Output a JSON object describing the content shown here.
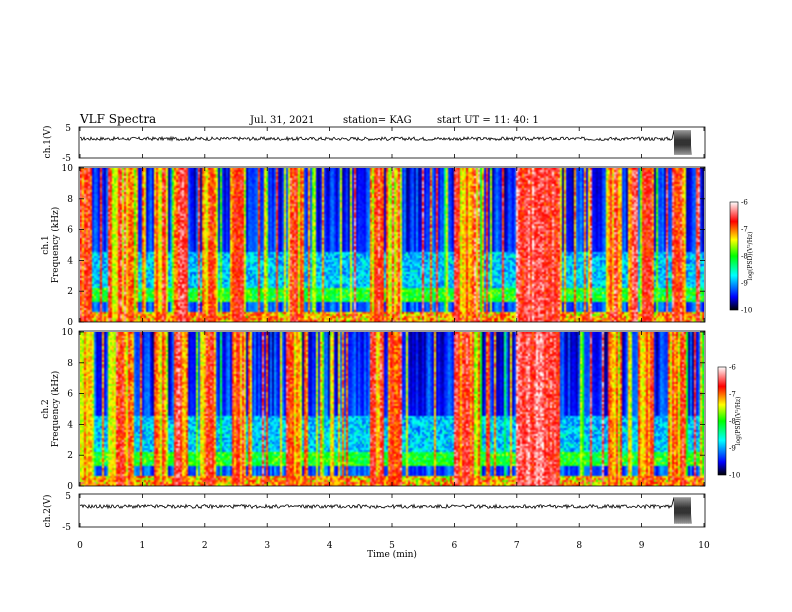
{
  "header": {
    "title": "VLF Spectra",
    "date": "Jul. 31, 2021",
    "station": "station= KAG",
    "start": "start  UT =  11: 40: 1"
  },
  "chart_data": [
    {
      "type": "line",
      "name": "ch.1 waveform",
      "ylabel": "ch.1(V)",
      "ylim": [
        -5,
        5
      ],
      "yticks": [
        "5",
        "-5"
      ],
      "xlim": [
        0,
        10
      ],
      "trace_level_v": 1.3,
      "note_text": ""
    },
    {
      "type": "heatmap",
      "name": "ch.1 spectrogram",
      "ylabel": [
        "ch.1",
        "Frequency (kHz)"
      ],
      "ylim": [
        0,
        10
      ],
      "yticks": [
        "10",
        "8",
        "6",
        "4",
        "2",
        "0"
      ],
      "xlim": [
        0,
        10
      ],
      "colorbar": {
        "label": "log(PSD)(V²/Hz)",
        "range": [
          -10,
          -6
        ],
        "ticks": [
          "-6",
          "-7",
          "-8",
          "-9",
          "-10"
        ]
      },
      "broadband_noise_times_min": [
        0.05,
        0.55,
        0.75,
        1.3,
        1.6,
        2.05,
        2.55,
        3.45,
        4.75,
        5.05,
        6.1,
        6.3,
        7.1,
        7.5,
        8.6,
        9.1,
        9.6
      ],
      "lightning_band_khz": [
        1.2,
        4.5
      ]
    },
    {
      "type": "heatmap",
      "name": "ch.2 spectrogram",
      "ylabel": [
        "ch.2",
        "Frequency (kHz)"
      ],
      "ylim": [
        0,
        10
      ],
      "yticks": [
        "10",
        "8",
        "6",
        "4",
        "2",
        "0"
      ],
      "xlim": [
        0,
        10
      ],
      "colorbar": {
        "label": "log(PSD)(V²/Hz)",
        "range": [
          -10,
          -6
        ],
        "ticks": [
          "-6",
          "-7",
          "-8",
          "-9",
          "-10"
        ]
      },
      "broadband_noise_times_min": [
        0.05,
        0.55,
        0.75,
        1.3,
        1.6,
        2.05,
        2.55,
        3.45,
        4.75,
        5.05,
        6.1,
        6.3,
        7.1,
        7.5,
        8.6,
        9.1,
        9.6
      ],
      "lightning_band_khz": [
        1.2,
        4.5
      ]
    },
    {
      "type": "line",
      "name": "ch.2 waveform",
      "ylabel": "ch.2(V)",
      "ylim": [
        -5,
        5
      ],
      "yticks": [
        "5",
        "-5"
      ],
      "xlim": [
        0,
        10
      ],
      "trace_level_v": 1.3
    }
  ],
  "xaxis": {
    "label": "Time (min)",
    "ticks": [
      "0",
      "1",
      "2",
      "3",
      "4",
      "5",
      "6",
      "7",
      "8",
      "9",
      "10"
    ],
    "range": [
      0,
      10
    ]
  },
  "colors": {
    "low": "#000000",
    "blue": "#0000ff",
    "cyan": "#00ffff",
    "green": "#00ff00",
    "yellow": "#ffff00",
    "red": "#ff0000",
    "high": "#ffffff"
  }
}
